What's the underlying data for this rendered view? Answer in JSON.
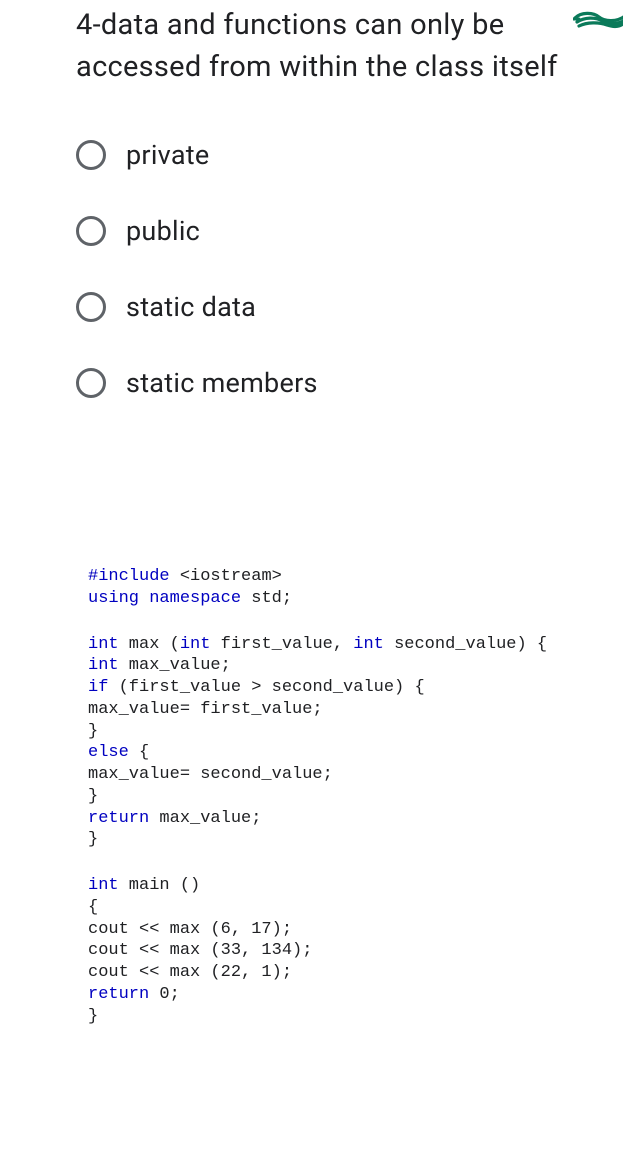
{
  "question": {
    "text": "4-data and functions can only be accessed from within the class itself"
  },
  "options": [
    {
      "label": "private"
    },
    {
      "label": "public"
    },
    {
      "label": "static data"
    },
    {
      "label": "static members"
    }
  ],
  "scribble_color": "#0b7a5a",
  "radio_border_color": "#5f6368",
  "code": {
    "font_family": "Courier New",
    "keyword_color": "#0000c0",
    "text_color": "#202124",
    "block1": [
      "#include <iostream>",
      "using namespace std;"
    ],
    "block2": [
      "int max (int first_value, int second_value) {",
      "int max_value;",
      "if (first_value > second_value) {",
      "max_value= first_value;",
      "}",
      "else {",
      "max_value= second_value;",
      "}",
      "return max_value;",
      "}"
    ],
    "block3": [
      "int main ()",
      "{",
      "cout << max (6, 17);",
      "cout << max (33, 134);",
      "cout << max (22, 1);",
      "return 0;",
      "}"
    ]
  }
}
